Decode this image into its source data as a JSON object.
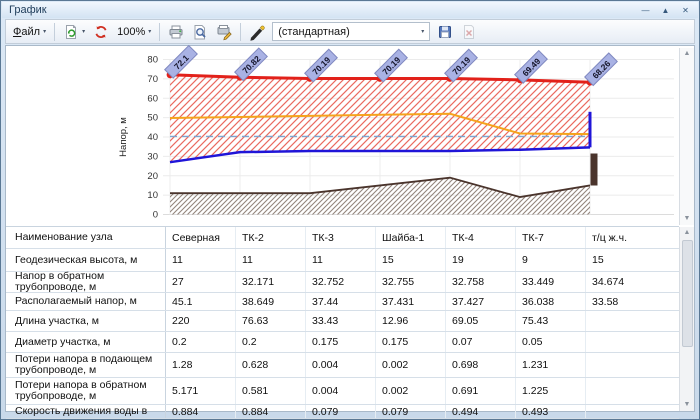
{
  "window": {
    "title": "График",
    "minimize_glyph": "—",
    "rollup_glyph": "▲",
    "close_glyph": "✕"
  },
  "ui": {
    "dropdown_glyph": "▾",
    "scroll_up_glyph": "▲",
    "scroll_down_glyph": "▼"
  },
  "toolbar": {
    "file_label_key": "Ф",
    "file_label_rest": "айл",
    "zoom_value": "100%",
    "template_value": "(стандартная)"
  },
  "chart_data": {
    "type": "line",
    "title": "",
    "ylabel": "Напор, м",
    "ylim": [
      0,
      80
    ],
    "ytick_step": 10,
    "grid": true,
    "nodes": [
      "Северная",
      "ТК-2",
      "ТК-3",
      "Шайба-1",
      "ТК-4",
      "ТК-7",
      "т/ц ж.ч."
    ],
    "series": [
      {
        "name": "supply-pipe-head",
        "color": "#e2211a",
        "values": [
          72.1,
          70.82,
          70.19,
          70.19,
          70.19,
          69.49,
          68.26
        ],
        "point_labels": [
          "72.1",
          "70.82",
          "70.19",
          "70.19",
          "70.19",
          "69.49",
          "68.26"
        ]
      },
      {
        "name": "orange-line",
        "color": "#f5a31c",
        "values": [
          49.8,
          50.3,
          50.9,
          51.5,
          52.0,
          41.8,
          41.5
        ]
      },
      {
        "name": "return-pipe-head",
        "color": "#2015d8",
        "values": [
          27,
          32.171,
          32.752,
          32.755,
          32.758,
          33.449,
          34.674
        ]
      },
      {
        "name": "ground-level",
        "color": "#4a342c",
        "values": [
          11,
          11,
          11,
          15,
          19,
          9,
          15
        ]
      }
    ],
    "dashed_level": 40.3,
    "end_marks": {
      "blue_bar_top": 53,
      "building_bar_top": 31.5
    },
    "label_box_color": "#a9b2e4",
    "legend_position": "none"
  },
  "table": {
    "rows": [
      {
        "label": "Наименование узла",
        "values": [
          "Северная",
          "ТК-2",
          "ТК-3",
          "Шайба-1",
          "ТК-4",
          "ТК-7",
          "т/ц ж.ч."
        ]
      },
      {
        "label": "Геодезическая высота, м",
        "values": [
          "11",
          "11",
          "11",
          "15",
          "19",
          "9",
          "15"
        ]
      },
      {
        "label": "Напор в обратном трубопроводе, м",
        "values": [
          "27",
          "32.171",
          "32.752",
          "32.755",
          "32.758",
          "33.449",
          "34.674"
        ]
      },
      {
        "label": "Располагаемый напор, м",
        "values": [
          "45.1",
          "38.649",
          "37.44",
          "37.431",
          "37.427",
          "36.038",
          "33.58"
        ]
      },
      {
        "label": "Длина участка, м",
        "values": [
          "220",
          "76.63",
          "33.43",
          "12.96",
          "69.05",
          "75.43",
          ""
        ]
      },
      {
        "label": "Диаметр участка, м",
        "values": [
          "0.2",
          "0.2",
          "0.175",
          "0.175",
          "0.07",
          "0.05",
          ""
        ]
      },
      {
        "label": "Потери напора в подающем трубопроводе, м",
        "values": [
          "1.28",
          "0.628",
          "0.004",
          "0.002",
          "0.698",
          "1.231",
          ""
        ]
      },
      {
        "label": "Потери напора в обратном трубопроводе, м",
        "values": [
          "5.171",
          "0.581",
          "0.004",
          "0.002",
          "0.691",
          "1.225",
          ""
        ]
      },
      {
        "label": "Скорость движения воды в",
        "values": [
          "0.884",
          "0.884",
          "0.079",
          "0.079",
          "0.494",
          "0.493",
          ""
        ]
      }
    ]
  }
}
